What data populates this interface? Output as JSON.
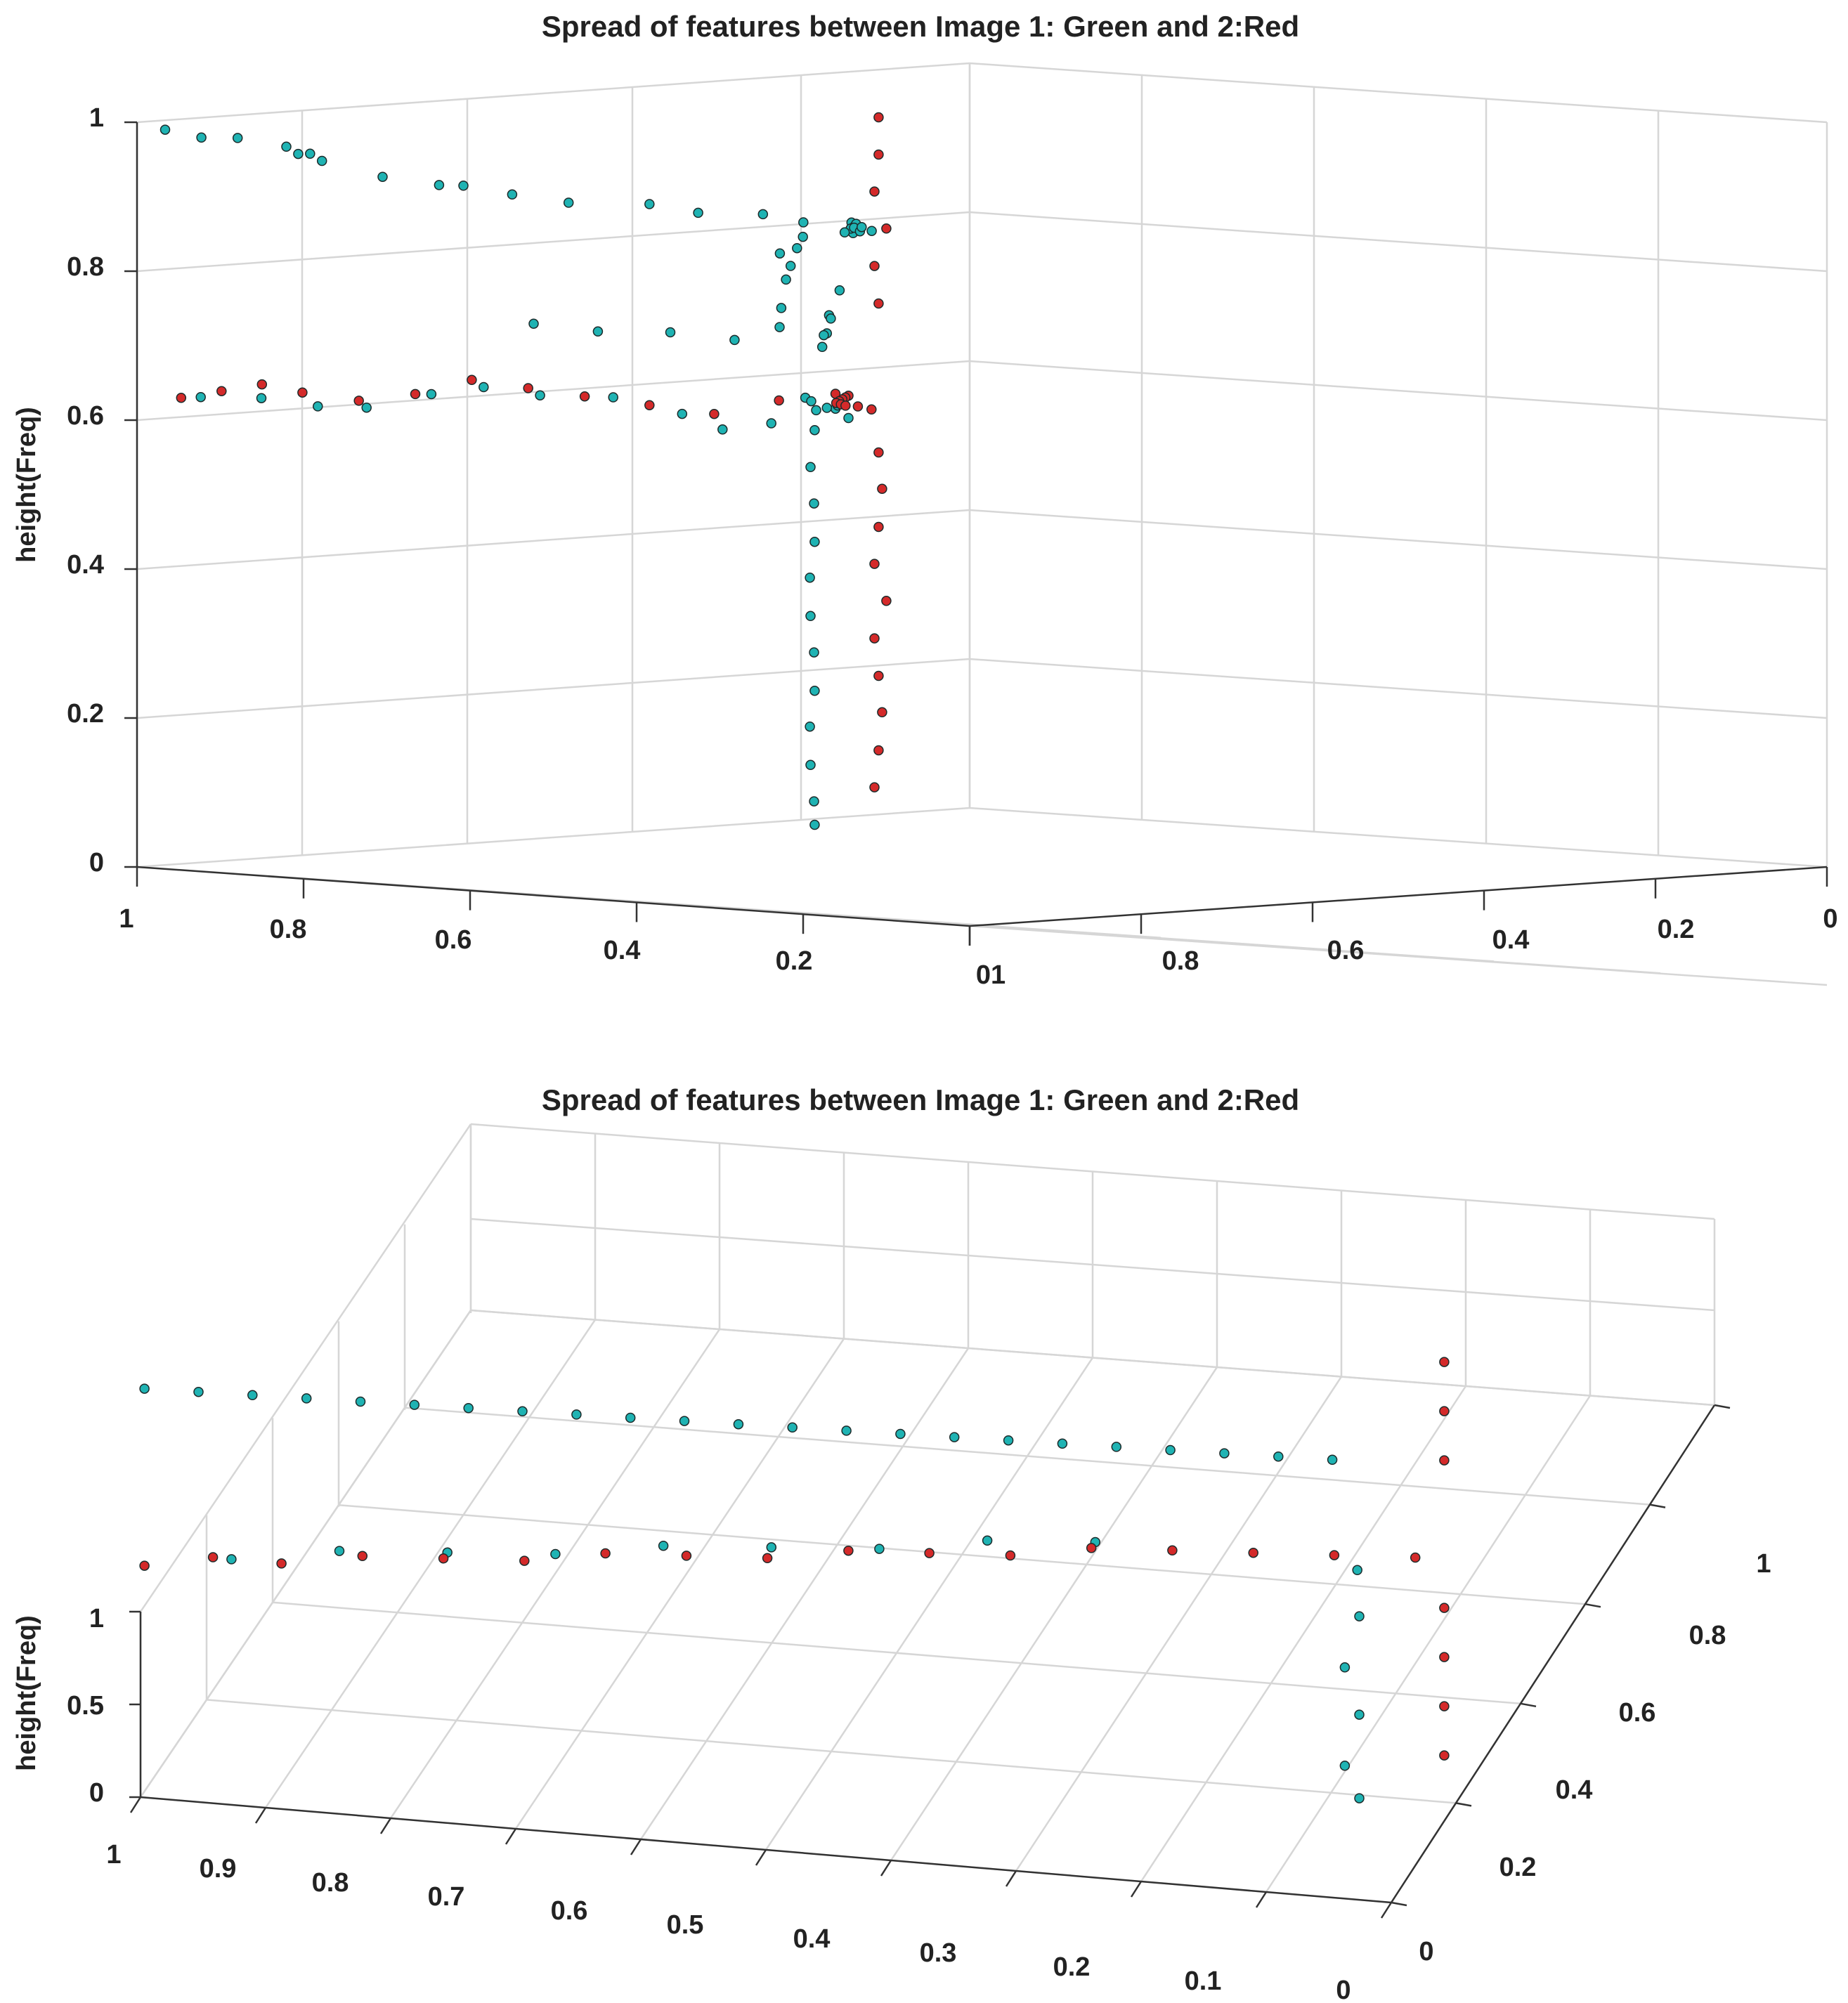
{
  "colors": {
    "green": "#1fb3b3",
    "red": "#d42a2a",
    "edge": "#1c2a2a",
    "grid": "#d6d6d6",
    "axis": "#333333"
  },
  "chart_data": [
    {
      "type": "scatter3d",
      "title": "Spread of features between Image 1: Green and 2:Red",
      "zlabel": "height(Freq)",
      "zticks": [
        "0",
        "0.2",
        "0.4",
        "0.6",
        "0.8",
        "1"
      ],
      "left_axis_ticks": [
        "1",
        "0.8",
        "0.6",
        "0.4",
        "0.2"
      ],
      "shared_corner_tick": "01",
      "right_axis_ticks": [
        "0.8",
        "0.6",
        "0.4",
        "0.2",
        "0"
      ],
      "xlim": [
        0,
        1
      ],
      "ylim": [
        0,
        1
      ],
      "zlim": [
        0,
        1
      ],
      "series": [
        {
          "name": "Image 1: Green",
          "points": [
            [
              1.0,
              0.0,
              0.99
            ],
            [
              0.95,
              0.02,
              0.98
            ],
            [
              0.9,
              0.04,
              0.98
            ],
            [
              0.82,
              0.06,
              0.97
            ],
            [
              0.81,
              0.07,
              0.96
            ],
            [
              0.8,
              0.08,
              0.96
            ],
            [
              0.79,
              0.09,
              0.95
            ],
            [
              0.7,
              0.12,
              0.93
            ],
            [
              0.62,
              0.15,
              0.92
            ],
            [
              0.58,
              0.16,
              0.92
            ],
            [
              0.5,
              0.18,
              0.91
            ],
            [
              0.42,
              0.21,
              0.9
            ],
            [
              0.3,
              0.25,
              0.9
            ],
            [
              0.22,
              0.27,
              0.89
            ],
            [
              0.12,
              0.3,
              0.89
            ],
            [
              0.06,
              0.32,
              0.88
            ],
            [
              0.0,
              0.35,
              0.88
            ],
            [
              0.05,
              0.38,
              0.87
            ],
            [
              0.1,
              0.41,
              0.87
            ],
            [
              0.15,
              0.43,
              0.86
            ],
            [
              0.2,
              0.46,
              0.85
            ],
            [
              0.28,
              0.5,
              0.85
            ],
            [
              0.35,
              0.53,
              0.84
            ],
            [
              0.42,
              0.58,
              0.84
            ],
            [
              0.48,
              0.62,
              0.83
            ],
            [
              0.55,
              0.66,
              0.83
            ],
            [
              0.6,
              0.7,
              0.82
            ],
            [
              0.3,
              0.1,
              0.75
            ],
            [
              0.22,
              0.14,
              0.74
            ],
            [
              0.12,
              0.18,
              0.74
            ],
            [
              0.04,
              0.22,
              0.73
            ],
            [
              0.08,
              0.3,
              0.74
            ],
            [
              0.15,
              0.34,
              0.76
            ],
            [
              0.25,
              0.4,
              0.79
            ],
            [
              0.35,
              0.46,
              0.8
            ],
            [
              0.45,
              0.5,
              0.81
            ],
            [
              0.52,
              0.56,
              0.81
            ],
            [
              0.58,
              0.6,
              0.82
            ],
            [
              0.2,
              0.42,
              0.7
            ],
            [
              0.3,
              0.48,
              0.71
            ],
            [
              0.4,
              0.53,
              0.7
            ],
            [
              0.48,
              0.58,
              0.72
            ],
            [
              0.55,
              0.62,
              0.71
            ],
            [
              0.64,
              0.68,
              0.74
            ],
            [
              0.97,
              0.03,
              0.63
            ],
            [
              0.88,
              0.06,
              0.63
            ],
            [
              0.8,
              0.09,
              0.62
            ],
            [
              0.72,
              0.11,
              0.62
            ],
            [
              0.62,
              0.14,
              0.64
            ],
            [
              0.55,
              0.17,
              0.65
            ],
            [
              0.47,
              0.2,
              0.64
            ],
            [
              0.35,
              0.23,
              0.64
            ],
            [
              0.24,
              0.26,
              0.62
            ],
            [
              0.18,
              0.28,
              0.6
            ],
            [
              0.1,
              0.3,
              0.61
            ],
            [
              0.02,
              0.34,
              0.63
            ],
            [
              0.1,
              0.4,
              0.61
            ],
            [
              0.2,
              0.44,
              0.62
            ],
            [
              0.3,
              0.48,
              0.61
            ],
            [
              0.4,
              0.52,
              0.6
            ],
            [
              0.5,
              0.56,
              0.61
            ],
            [
              0.56,
              0.6,
              0.6
            ],
            [
              0.7,
              0.68,
              0.55
            ],
            [
              0.71,
              0.68,
              0.5
            ],
            [
              0.72,
              0.69,
              0.45
            ],
            [
              0.7,
              0.68,
              0.4
            ],
            [
              0.73,
              0.69,
              0.35
            ],
            [
              0.71,
              0.68,
              0.3
            ],
            [
              0.72,
              0.69,
              0.25
            ],
            [
              0.7,
              0.68,
              0.2
            ],
            [
              0.73,
              0.69,
              0.15
            ],
            [
              0.71,
              0.68,
              0.1
            ],
            [
              0.72,
              0.69,
              0.05
            ],
            [
              0.7,
              0.68,
              0.02
            ]
          ]
        },
        {
          "name": "Image 2: Red",
          "points": [
            [
              0.98,
              0.01,
              0.63
            ],
            [
              0.92,
              0.03,
              0.64
            ],
            [
              0.86,
              0.05,
              0.65
            ],
            [
              0.8,
              0.07,
              0.64
            ],
            [
              0.72,
              0.1,
              0.63
            ],
            [
              0.64,
              0.13,
              0.64
            ],
            [
              0.56,
              0.16,
              0.66
            ],
            [
              0.48,
              0.19,
              0.65
            ],
            [
              0.4,
              0.22,
              0.64
            ],
            [
              0.3,
              0.25,
              0.63
            ],
            [
              0.2,
              0.28,
              0.62
            ],
            [
              0.1,
              0.31,
              0.64
            ],
            [
              0.02,
              0.34,
              0.65
            ],
            [
              0.1,
              0.4,
              0.64
            ],
            [
              0.2,
              0.45,
              0.63
            ],
            [
              0.3,
              0.5,
              0.62
            ],
            [
              0.4,
              0.55,
              0.61
            ],
            [
              0.5,
              0.6,
              0.6
            ],
            [
              0.6,
              0.66,
              0.59
            ],
            [
              0.7,
              0.72,
              0.58
            ],
            [
              0.8,
              0.79,
              0.57
            ],
            [
              0.86,
              0.84,
              0.56
            ],
            [
              0.88,
              0.86,
              0.95
            ],
            [
              0.88,
              0.86,
              0.9
            ],
            [
              0.89,
              0.86,
              0.85
            ],
            [
              0.88,
              0.87,
              0.8
            ],
            [
              0.89,
              0.86,
              0.75
            ],
            [
              0.88,
              0.86,
              0.7
            ],
            [
              0.88,
              0.86,
              0.5
            ],
            [
              0.89,
              0.87,
              0.45
            ],
            [
              0.88,
              0.86,
              0.4
            ],
            [
              0.89,
              0.86,
              0.35
            ],
            [
              0.88,
              0.87,
              0.3
            ],
            [
              0.89,
              0.86,
              0.25
            ],
            [
              0.88,
              0.86,
              0.2
            ],
            [
              0.89,
              0.87,
              0.15
            ],
            [
              0.88,
              0.86,
              0.1
            ],
            [
              0.89,
              0.86,
              0.05
            ]
          ]
        }
      ]
    },
    {
      "type": "scatter3d",
      "title": "Spread of features between Image 1: Green and 2:Red",
      "zlabel": "height(Freq)",
      "zticks": [
        "0",
        "0.5",
        "1"
      ],
      "xticks": [
        "1",
        "0.9",
        "0.8",
        "0.7",
        "0.6",
        "0.5",
        "0.4",
        "0.3",
        "0.2",
        "0.1",
        "0"
      ],
      "yticks": [
        "0",
        "0.2",
        "0.4",
        "0.6",
        "0.8",
        "1"
      ],
      "xlim": [
        0,
        1
      ],
      "ylim": [
        0,
        1
      ],
      "zlim": [
        0,
        1
      ],
      "series": [
        {
          "name": "Image 1: Green",
          "points": [
            [
              1.0,
              0.02,
              0.99
            ],
            [
              0.96,
              0.04,
              0.98
            ],
            [
              0.92,
              0.06,
              0.97
            ],
            [
              0.88,
              0.08,
              0.96
            ],
            [
              0.84,
              0.1,
              0.95
            ],
            [
              0.8,
              0.12,
              0.94
            ],
            [
              0.76,
              0.14,
              0.93
            ],
            [
              0.72,
              0.16,
              0.92
            ],
            [
              0.68,
              0.18,
              0.91
            ],
            [
              0.64,
              0.2,
              0.9
            ],
            [
              0.6,
              0.22,
              0.89
            ],
            [
              0.56,
              0.24,
              0.88
            ],
            [
              0.52,
              0.26,
              0.87
            ],
            [
              0.48,
              0.28,
              0.86
            ],
            [
              0.44,
              0.3,
              0.85
            ],
            [
              0.4,
              0.32,
              0.84
            ],
            [
              0.36,
              0.34,
              0.83
            ],
            [
              0.32,
              0.36,
              0.82
            ],
            [
              0.28,
              0.38,
              0.81
            ],
            [
              0.24,
              0.4,
              0.8
            ],
            [
              0.2,
              0.42,
              0.79
            ],
            [
              0.16,
              0.44,
              0.78
            ],
            [
              0.12,
              0.46,
              0.77
            ],
            [
              0.94,
              0.08,
              0.62
            ],
            [
              0.86,
              0.12,
              0.63
            ],
            [
              0.78,
              0.16,
              0.62
            ],
            [
              0.7,
              0.2,
              0.61
            ],
            [
              0.62,
              0.24,
              0.62
            ],
            [
              0.54,
              0.28,
              0.61
            ],
            [
              0.46,
              0.32,
              0.6
            ],
            [
              0.38,
              0.36,
              0.61
            ],
            [
              0.3,
              0.4,
              0.6
            ],
            [
              0.1,
              0.46,
              0.55
            ],
            [
              0.1,
              0.47,
              0.45
            ],
            [
              0.11,
              0.46,
              0.35
            ],
            [
              0.1,
              0.47,
              0.25
            ],
            [
              0.11,
              0.46,
              0.15
            ],
            [
              0.1,
              0.47,
              0.08
            ]
          ]
        },
        {
          "name": "Image 2: Red",
          "points": [
            [
              1.0,
              0.02,
              0.63
            ],
            [
              0.95,
              0.05,
              0.64
            ],
            [
              0.9,
              0.08,
              0.62
            ],
            [
              0.84,
              0.11,
              0.63
            ],
            [
              0.78,
              0.14,
              0.62
            ],
            [
              0.72,
              0.17,
              0.61
            ],
            [
              0.66,
              0.2,
              0.62
            ],
            [
              0.6,
              0.23,
              0.61
            ],
            [
              0.54,
              0.26,
              0.6
            ],
            [
              0.48,
              0.29,
              0.61
            ],
            [
              0.42,
              0.32,
              0.6
            ],
            [
              0.36,
              0.35,
              0.59
            ],
            [
              0.3,
              0.38,
              0.6
            ],
            [
              0.24,
              0.41,
              0.59
            ],
            [
              0.18,
              0.44,
              0.58
            ],
            [
              0.12,
              0.47,
              0.57
            ],
            [
              0.06,
              0.5,
              0.56
            ],
            [
              0.04,
              0.52,
              0.95
            ],
            [
              0.04,
              0.52,
              0.85
            ],
            [
              0.04,
              0.52,
              0.75
            ],
            [
              0.04,
              0.52,
              0.45
            ],
            [
              0.04,
              0.52,
              0.35
            ],
            [
              0.04,
              0.52,
              0.25
            ],
            [
              0.04,
              0.52,
              0.15
            ]
          ]
        }
      ]
    }
  ]
}
